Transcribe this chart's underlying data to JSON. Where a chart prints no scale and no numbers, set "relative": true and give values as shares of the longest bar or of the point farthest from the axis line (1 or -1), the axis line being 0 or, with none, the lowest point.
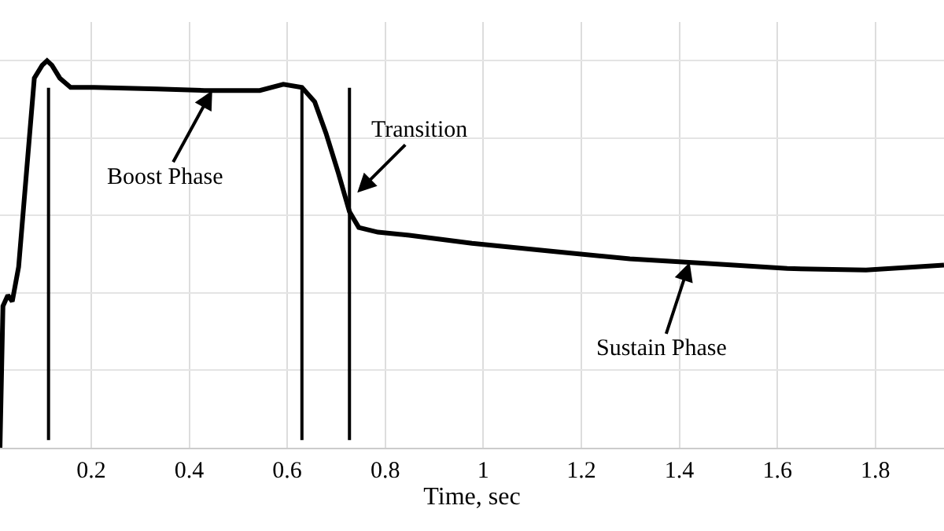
{
  "chart_data": {
    "type": "line",
    "relative": true,
    "xlabel": "Time, sec",
    "xlim": [
      0.014,
      1.94
    ],
    "xticks": [
      0.2,
      0.4,
      0.6,
      0.8,
      1,
      1.2,
      1.4,
      1.6,
      1.8
    ],
    "x": [
      0.014,
      0.02,
      0.03,
      0.039,
      0.052,
      0.068,
      0.084,
      0.1,
      0.11,
      0.12,
      0.136,
      0.158,
      0.206,
      0.335,
      0.431,
      0.544,
      0.592,
      0.63,
      0.656,
      0.679,
      0.704,
      0.727,
      0.746,
      0.785,
      0.849,
      0.977,
      1.138,
      1.299,
      1.46,
      1.62,
      1.781,
      1.877,
      1.94
    ],
    "series": [
      {
        "color": "#000000",
        "values": [
          0,
          0.366,
          0.394,
          0.378,
          0.467,
          0.711,
          0.955,
          0.988,
          1.0,
          0.988,
          0.955,
          0.931,
          0.931,
          0.927,
          0.923,
          0.923,
          0.939,
          0.931,
          0.894,
          0.813,
          0.711,
          0.61,
          0.569,
          0.557,
          0.549,
          0.528,
          0.508,
          0.488,
          0.476,
          0.463,
          0.459,
          0.467,
          0.472
        ]
      }
    ],
    "ref_lines": [
      {
        "axis": "x",
        "value": 0.113,
        "color": "#000000"
      },
      {
        "axis": "x",
        "value": 0.63,
        "color": "#000000"
      },
      {
        "axis": "x",
        "value": 0.727,
        "color": "#000000"
      }
    ],
    "annotations": [
      {
        "text": "Boost Phase",
        "x": 0.447,
        "y": 0.923
      },
      {
        "text": "Transition",
        "x": 0.743,
        "y": 0.659
      },
      {
        "text": "Sustain Phase",
        "x": 1.421,
        "y": 0.479
      }
    ],
    "grid": true,
    "marker": "none",
    "line_style": "solid"
  }
}
